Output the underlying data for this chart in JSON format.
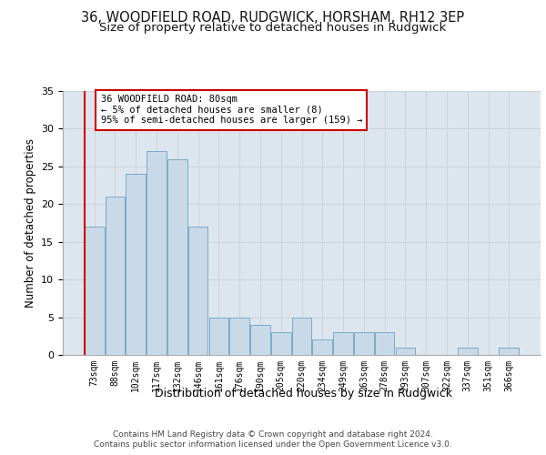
{
  "title_line1": "36, WOODFIELD ROAD, RUDGWICK, HORSHAM, RH12 3EP",
  "title_line2": "Size of property relative to detached houses in Rudgwick",
  "xlabel": "Distribution of detached houses by size in Rudgwick",
  "ylabel": "Number of detached properties",
  "bar_values": [
    17,
    21,
    24,
    27,
    26,
    17,
    5,
    5,
    4,
    3,
    5,
    2,
    3,
    3,
    3,
    1,
    0,
    0,
    1,
    0,
    1
  ],
  "bar_labels": [
    "73sqm",
    "88sqm",
    "102sqm",
    "117sqm",
    "132sqm",
    "146sqm",
    "161sqm",
    "176sqm",
    "190sqm",
    "205sqm",
    "220sqm",
    "234sqm",
    "249sqm",
    "263sqm",
    "278sqm",
    "293sqm",
    "307sqm",
    "322sqm",
    "337sqm",
    "351sqm",
    "366sqm"
  ],
  "bar_color": "#c9d9e8",
  "bar_edgecolor": "#7aaac8",
  "redline_color": "#cc0000",
  "annotation_line1": "36 WOODFIELD ROAD: 80sqm",
  "annotation_line2": "← 5% of detached houses are smaller (8)",
  "annotation_line3": "95% of semi-detached houses are larger (159) →",
  "annotation_box_edgecolor": "#cc0000",
  "ylim": [
    0,
    35
  ],
  "yticks": [
    0,
    5,
    10,
    15,
    20,
    25,
    30,
    35
  ],
  "grid_color": "#c8d0d8",
  "bg_color": "#dde6ef",
  "footer_line1": "Contains HM Land Registry data © Crown copyright and database right 2024.",
  "footer_line2": "Contains public sector information licensed under the Open Government Licence v3.0.",
  "title_fontsize": 10.5,
  "subtitle_fontsize": 9.5,
  "tick_fontsize": 7,
  "ylabel_fontsize": 8.5,
  "xlabel_fontsize": 9,
  "annot_fontsize": 7.5,
  "footer_fontsize": 6.5
}
